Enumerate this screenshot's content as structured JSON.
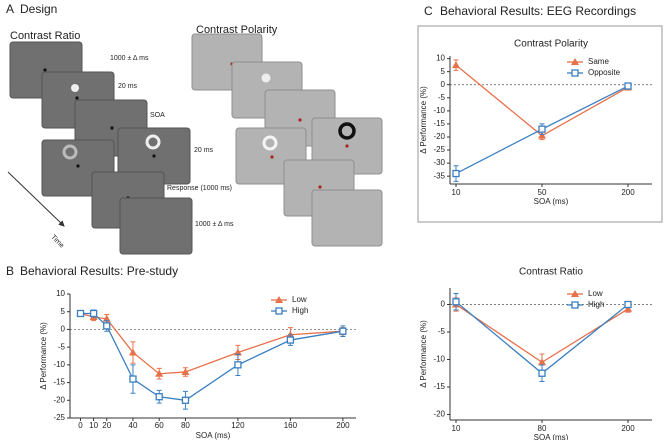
{
  "panels": [
    {
      "letter": "A",
      "title": "Design"
    },
    {
      "letter": "B",
      "title": "Behavioral Results: Pre-study"
    },
    {
      "letter": "C",
      "title": "Behavioral Results: EEG Recordings"
    }
  ],
  "design": {
    "left_title": "Contrast Ratio",
    "right_title": "Contrast Polarity",
    "steps": [
      "1000 ± Δ ms",
      "20 ms",
      "SOA",
      "20 ms",
      "Response (1000 ms)",
      "1000 ± Δ ms"
    ],
    "time_label": "Time"
  },
  "chart_data": [
    {
      "type": "line",
      "xlabel": "SOA (ms)",
      "ylabel": "Δ Performance (%)",
      "x": [
        0,
        10,
        20,
        40,
        60,
        80,
        120,
        160,
        200
      ],
      "xlim": [
        -8,
        210
      ],
      "xticks": [
        0,
        10,
        20,
        40,
        60,
        80,
        120,
        160,
        200
      ],
      "ylim": [
        -25,
        10
      ],
      "yticks": [
        10,
        5,
        0,
        -5,
        -10,
        -15,
        -20,
        -25
      ],
      "hline": 0,
      "legend": "upper right",
      "series": [
        {
          "name": "Low",
          "color": "#e8714a",
          "marker": "triangle",
          "values": [
            4.5,
            3.5,
            3,
            -6.5,
            -12.5,
            -12,
            -6.5,
            -1.5,
            -0.5
          ],
          "errors": [
            0.8,
            1,
            1.2,
            3,
            1.5,
            1.2,
            2,
            2,
            1
          ]
        },
        {
          "name": "High",
          "color": "#3a7fc1",
          "marker": "square",
          "values": [
            4.5,
            4.5,
            1,
            -14,
            -19,
            -20,
            -10,
            -3,
            -0.5
          ],
          "errors": [
            0.8,
            1,
            1.5,
            4,
            1.8,
            2.5,
            3,
            1.5,
            1.5
          ]
        }
      ]
    },
    {
      "type": "line",
      "title": "Contrast Polarity",
      "xlabel": "SOA (ms)",
      "ylabel": "Δ Performance (%)",
      "categories": [
        "10",
        "50",
        "200"
      ],
      "ylim": [
        -38,
        11
      ],
      "yticks": [
        10,
        5,
        0,
        -5,
        -10,
        -15,
        -20,
        -25,
        -30,
        -35
      ],
      "hline": 0,
      "legend": "upper right",
      "series": [
        {
          "name": "Same",
          "color": "#e8714a",
          "marker": "triangle",
          "values": [
            7.5,
            -19.5,
            -1
          ],
          "errors": [
            2,
            1.5,
            1
          ]
        },
        {
          "name": "Opposite",
          "color": "#3a7fc1",
          "marker": "square",
          "values": [
            -34,
            -17,
            -0.5
          ],
          "errors": [
            3,
            2,
            1
          ]
        }
      ]
    },
    {
      "type": "line",
      "title": "Contrast Ratio",
      "xlabel": "SOA (ms)",
      "ylabel": "Δ Performance (%)",
      "categories": [
        "10",
        "80",
        "200"
      ],
      "ylim": [
        -21,
        3
      ],
      "yticks": [
        0,
        -5,
        -10,
        -15,
        -20
      ],
      "hline": 0,
      "legend": "upper right",
      "series": [
        {
          "name": "Low",
          "color": "#e8714a",
          "marker": "triangle",
          "values": [
            0,
            -10.5,
            -0.8
          ],
          "errors": [
            1.2,
            1.5,
            0.6
          ]
        },
        {
          "name": "High",
          "color": "#3a7fc1",
          "marker": "square",
          "values": [
            0.5,
            -12.5,
            0
          ],
          "errors": [
            1.5,
            1.5,
            0.5
          ]
        }
      ]
    }
  ]
}
